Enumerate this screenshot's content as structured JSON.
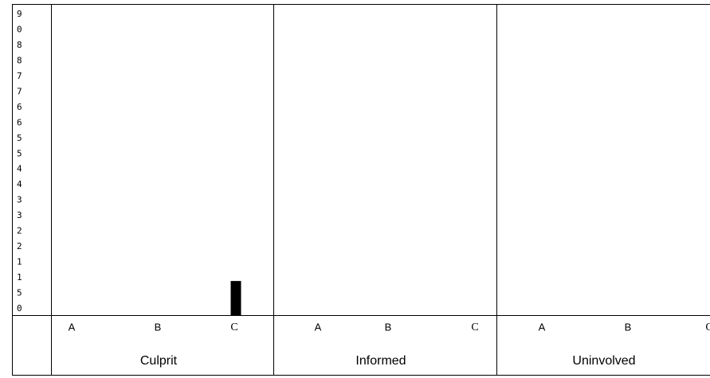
{
  "chart_data": {
    "type": "bar",
    "y_axis_labels": [
      "9",
      "0",
      "8",
      "8",
      "7",
      "7",
      "6",
      "6",
      "5",
      "5",
      "4",
      "4",
      "3",
      "3",
      "2",
      "2",
      "1",
      "1",
      "5",
      "0"
    ],
    "groups": [
      "Culprit",
      "Informed",
      "Uninvolved"
    ],
    "categories": [
      "A",
      "B",
      "C"
    ],
    "series": [
      {
        "values": [
          0,
          0,
          10
        ]
      },
      {
        "values": [
          0,
          0,
          0
        ]
      },
      {
        "values": [
          0,
          0,
          0
        ]
      }
    ],
    "color": "#000000",
    "ylim": [
      0,
      90
    ]
  }
}
